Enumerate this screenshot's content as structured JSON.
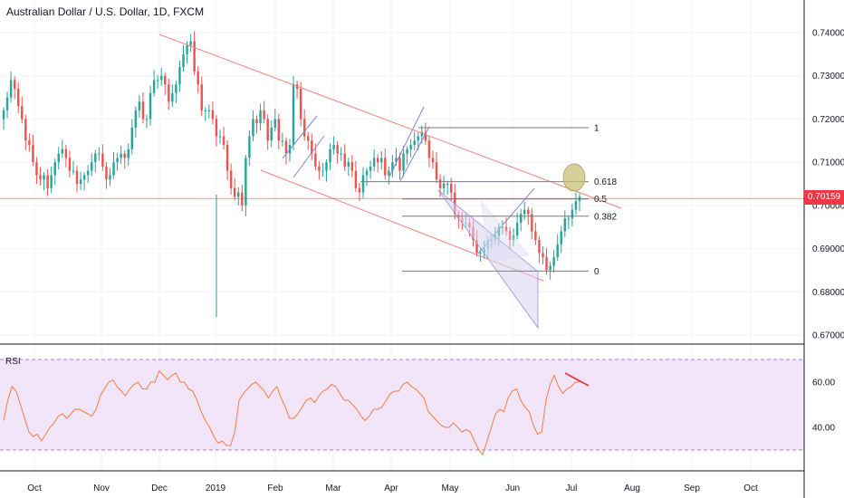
{
  "header": {
    "title": "Australian Dollar / U.S. Dollar, 1D, FXCM"
  },
  "last_price": "0.70159",
  "colors": {
    "up": "#26a69a",
    "down": "#ef5350",
    "channel": "#f0827a",
    "fib": "#787b86",
    "rsi_line": "#f57c44",
    "rsi_band": "#ead4f7",
    "price_line": "#f23645",
    "highlight": "#c9c07a"
  },
  "chart_data": {
    "type": "candlestick",
    "title": "Australian Dollar / U.S. Dollar, 1D, FXCM",
    "ylim": [
      0.667,
      0.744
    ],
    "y_ticks": [
      "0.74000",
      "0.73000",
      "0.72000",
      "0.71000",
      "0.70000",
      "0.69000",
      "0.68000",
      "0.67000"
    ],
    "x_ticks": [
      "Oct",
      "Nov",
      "Dec",
      "2019",
      "Feb",
      "Mar",
      "Apr",
      "May",
      "Jun",
      "Jul",
      "Aug",
      "Sep",
      "Oct"
    ],
    "fib_labels": [
      "1",
      "0.618",
      "0.5",
      "0.382",
      "0"
    ],
    "fib_levels": [
      0.718,
      0.7055,
      0.7015,
      0.6975,
      0.6848
    ],
    "closes": [
      0.722,
      0.725,
      0.729,
      0.727,
      0.723,
      0.72,
      0.715,
      0.714,
      0.71,
      0.707,
      0.706,
      0.707,
      0.704,
      0.707,
      0.71,
      0.712,
      0.713,
      0.711,
      0.708,
      0.708,
      0.705,
      0.706,
      0.707,
      0.708,
      0.71,
      0.712,
      0.712,
      0.709,
      0.706,
      0.707,
      0.71,
      0.711,
      0.712,
      0.711,
      0.713,
      0.718,
      0.722,
      0.724,
      0.72,
      0.72,
      0.726,
      0.729,
      0.729,
      0.73,
      0.728,
      0.724,
      0.726,
      0.728,
      0.732,
      0.735,
      0.737,
      0.738,
      0.731,
      0.728,
      0.722,
      0.722,
      0.722,
      0.72,
      0.716,
      0.716,
      0.714,
      0.708,
      0.704,
      0.702,
      0.703,
      0.7,
      0.711,
      0.716,
      0.72,
      0.719,
      0.722,
      0.72,
      0.715,
      0.718,
      0.72,
      0.715,
      0.715,
      0.712,
      0.714,
      0.728,
      0.727,
      0.72,
      0.716,
      0.715,
      0.712,
      0.709,
      0.708,
      0.708,
      0.71,
      0.713,
      0.714,
      0.712,
      0.712,
      0.709,
      0.71,
      0.708,
      0.704,
      0.703,
      0.707,
      0.708,
      0.709,
      0.711,
      0.71,
      0.711,
      0.707,
      0.708,
      0.71,
      0.711,
      0.708,
      0.712,
      0.713,
      0.714,
      0.715,
      0.716,
      0.717,
      0.715,
      0.711,
      0.71,
      0.706,
      0.704,
      0.705,
      0.705,
      0.703,
      0.698,
      0.697,
      0.696,
      0.696,
      0.695,
      0.692,
      0.689,
      0.689,
      0.69,
      0.692,
      0.692,
      0.693,
      0.695,
      0.695,
      0.694,
      0.692,
      0.693,
      0.696,
      0.698,
      0.699,
      0.698,
      0.694,
      0.692,
      0.689,
      0.688,
      0.685,
      0.686,
      0.688,
      0.691,
      0.694,
      0.697,
      0.697,
      0.699,
      0.701,
      0.702
    ],
    "rsi": {
      "label": "RSI",
      "y_ticks": [
        "60.00",
        "40.00"
      ],
      "ylim": [
        22,
        74
      ],
      "band": [
        70,
        30
      ],
      "values": [
        43,
        52,
        58,
        56,
        50,
        44,
        38,
        36,
        37,
        34,
        37,
        40,
        42,
        45,
        46,
        44,
        46,
        48,
        48,
        47,
        46,
        45,
        48,
        54,
        57,
        60,
        61,
        58,
        56,
        54,
        57,
        59,
        60,
        57,
        57,
        60,
        60,
        65,
        63,
        61,
        63,
        64,
        60,
        60,
        57,
        56,
        52,
        47,
        43,
        40,
        36,
        33,
        34,
        32,
        32,
        38,
        52,
        55,
        57,
        59,
        60,
        58,
        56,
        53,
        56,
        58,
        53,
        49,
        44,
        44,
        46,
        49,
        52,
        53,
        51,
        54,
        56,
        57,
        59,
        58,
        55,
        52,
        52,
        50,
        48,
        45,
        43,
        45,
        48,
        48,
        49,
        52,
        55,
        56,
        56,
        59,
        60,
        58,
        57,
        55,
        53,
        47,
        45,
        43,
        41,
        40,
        40,
        42,
        40,
        38,
        39,
        38,
        34,
        30,
        28,
        34,
        40,
        46,
        48,
        47,
        53,
        56,
        57,
        52,
        49,
        47,
        41,
        37,
        38,
        52,
        59,
        63,
        58,
        55,
        57,
        58,
        60,
        60
      ]
    }
  }
}
